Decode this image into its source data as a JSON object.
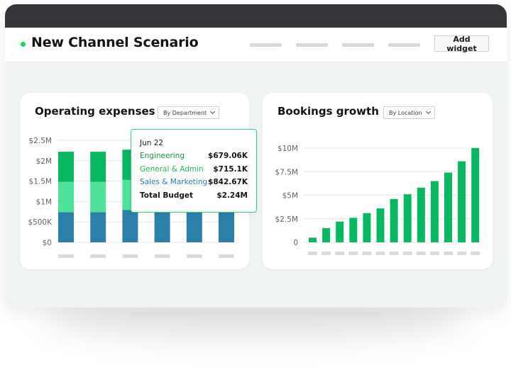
{
  "header": {
    "title": "New Channel Scenario",
    "add_widget_label": "Add widget",
    "status_color": "#1fcf5f"
  },
  "operating_expenses": {
    "title": "Operating expenses",
    "dropdown": "By Department",
    "tooltip": {
      "date": "Jun 22",
      "rows": [
        {
          "label": "Engineering",
          "value": "$679.06K",
          "color": "#1a8f4c"
        },
        {
          "label": "General & Admin",
          "value": "$715.1K",
          "color": "#1fb862"
        },
        {
          "label": "Sales & Marketing",
          "value": "$842.67K",
          "color": "#2a7fa8"
        },
        {
          "label": "Total Budget",
          "value": "$2.24M",
          "color": "#121417"
        }
      ]
    },
    "chart_data": {
      "type": "bar",
      "stacked": true,
      "y_ticks": [
        "$0",
        "$500K",
        "$1M",
        "$1.5M",
        "$2M",
        "$2.5M"
      ],
      "ylim": [
        0,
        2500000
      ],
      "categories_count": 6,
      "series": [
        {
          "color": "#2b7fa8",
          "values": [
            740000,
            740000,
            790000,
            740000,
            740000,
            740000
          ]
        },
        {
          "color": "#4de39a",
          "values": [
            740000,
            740000,
            740000,
            0,
            0,
            0
          ]
        },
        {
          "color": "#08b860",
          "values": [
            740000,
            740000,
            740000,
            0,
            0,
            0
          ]
        }
      ],
      "grid": true
    }
  },
  "bookings_growth": {
    "title": "Bookings growth",
    "dropdown": "By Location",
    "chart_data": {
      "type": "bar",
      "y_ticks": [
        "0",
        "$2.5M",
        "$5M",
        "$7.5M",
        "$10M"
      ],
      "ylim": [
        0,
        10000000
      ],
      "values": [
        500000,
        1500000,
        2200000,
        2600000,
        3100000,
        3600000,
        4600000,
        5100000,
        5800000,
        6500000,
        7400000,
        8600000,
        10000000
      ],
      "color": "#08b860",
      "grid": true
    }
  }
}
